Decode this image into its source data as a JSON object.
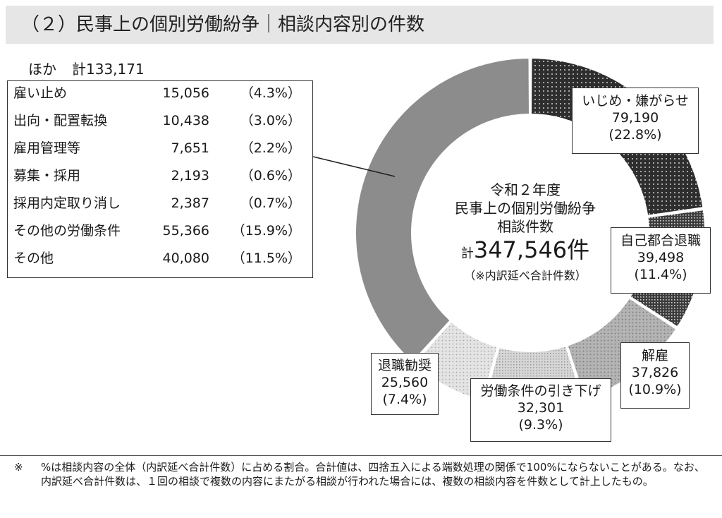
{
  "header": {
    "title": "（２）民事上の個別労働紛争｜相談内容別の件数"
  },
  "other": {
    "label": "ほか",
    "total": "計133,171",
    "rows": [
      {
        "label": "雇い止め",
        "value": "15,056",
        "pct": "（4.3%）"
      },
      {
        "label": "出向・配置転換",
        "value": "10,438",
        "pct": "（3.0%）"
      },
      {
        "label": "雇用管理等",
        "value": "7,651",
        "pct": "（2.2%）"
      },
      {
        "label": "募集・採用",
        "value": "2,193",
        "pct": "（0.6%）"
      },
      {
        "label": "採用内定取り消し",
        "value": "2,387",
        "pct": "（0.7%）"
      },
      {
        "label": "その他の労働条件",
        "value": "55,366",
        "pct": "（15.9%）"
      },
      {
        "label": "その他",
        "value": "40,080",
        "pct": "（11.5%）"
      }
    ]
  },
  "center": {
    "line1": "令和２年度",
    "line2": "民事上の個別労働紛争",
    "line3": "相談件数",
    "total_prefix": "計",
    "total_value": "347,546件",
    "note": "（※内訳延べ合計件数）"
  },
  "chart_data": {
    "type": "pie",
    "title": "",
    "total": 347546,
    "slices": [
      {
        "label": "いじめ・嫌がらせ",
        "value": 79190,
        "value_text": "79,190",
        "pct": "(22.8%)",
        "color": "#3a3a3a",
        "pattern": "dots-dark"
      },
      {
        "label": "自己都合退職",
        "value": 39498,
        "value_text": "39,498",
        "pct": "(11.4%)",
        "color": "#505050",
        "pattern": "grid-dark"
      },
      {
        "label": "解雇",
        "value": 37826,
        "value_text": "37,826",
        "pct": "(10.9%)",
        "color": "#a8a8a8",
        "pattern": "dots-mid"
      },
      {
        "label": "労働条件の引き下げ",
        "value": 32301,
        "value_text": "32,301",
        "pct": "(9.3%)",
        "color": "#c8c8c8",
        "pattern": "grid-light"
      },
      {
        "label": "退職勧奨",
        "value": 25560,
        "value_text": "25,560",
        "pct": "(7.4%)",
        "color": "#d8d8d8",
        "pattern": "dots-light"
      },
      {
        "label": "ほか",
        "value": 133171,
        "value_text": "133,171",
        "pct": "",
        "color": "#8c8c8c",
        "pattern": "solid"
      }
    ]
  },
  "footer": {
    "mark": "※",
    "text": "%は相談内容の全体（内訳延べ合計件数）に占める割合。合計値は、四捨五入による端数処理の関係で100%にならないことがある。なお、内訳延べ合計件数は、１回の相談で複数の内容にまたがる相談が行われた場合には、複数の相談内容を件数として計上したもの。"
  }
}
